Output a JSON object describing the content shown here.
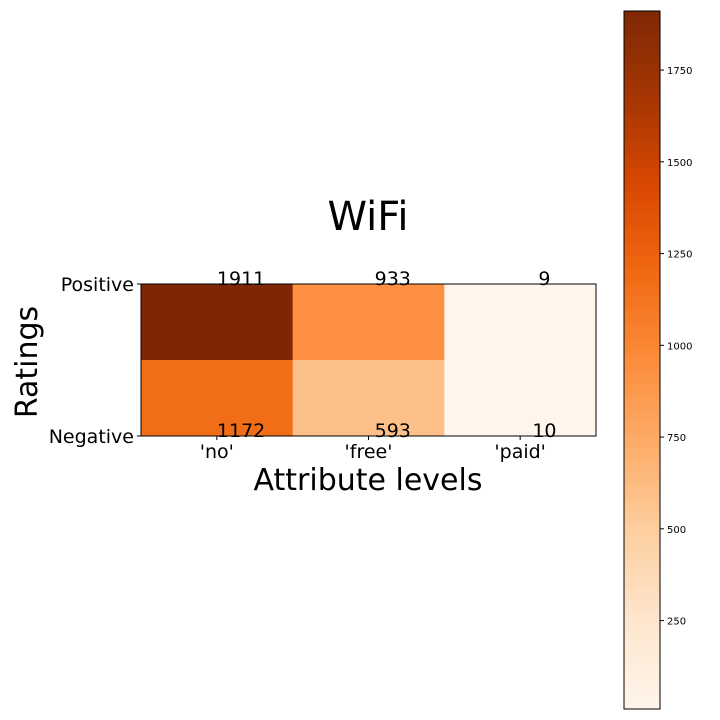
{
  "chart_data": {
    "type": "heatmap",
    "title": "WiFi",
    "xlabel": "Attribute levels",
    "ylabel": "Ratings",
    "x_categories": [
      "'no'",
      "'free'",
      "'paid'"
    ],
    "y_categories": [
      "Positive",
      "Negative"
    ],
    "rows": [
      {
        "name": "Positive",
        "values": [
          1911,
          933,
          9
        ]
      },
      {
        "name": "Negative",
        "values": [
          1172,
          593,
          10
        ]
      }
    ],
    "annotations": [
      {
        "row": "Positive",
        "col": "'no'",
        "label": "1911"
      },
      {
        "row": "Positive",
        "col": "'free'",
        "label": "933"
      },
      {
        "row": "Positive",
        "col": "'paid'",
        "label": "9"
      },
      {
        "row": "Negative",
        "col": "'no'",
        "label": "1172"
      },
      {
        "row": "Negative",
        "col": "'free'",
        "label": "593"
      },
      {
        "row": "Negative",
        "col": "'paid'",
        "label": "10"
      }
    ],
    "colormap": "Oranges",
    "colorbar": {
      "range": [
        9,
        1911
      ],
      "ticks": [
        250,
        500,
        750,
        1000,
        1250,
        1500,
        1750
      ],
      "tick_labels": [
        "250",
        "500",
        "750",
        "1000",
        "1250",
        "1500",
        "1750"
      ]
    },
    "grid": false
  }
}
